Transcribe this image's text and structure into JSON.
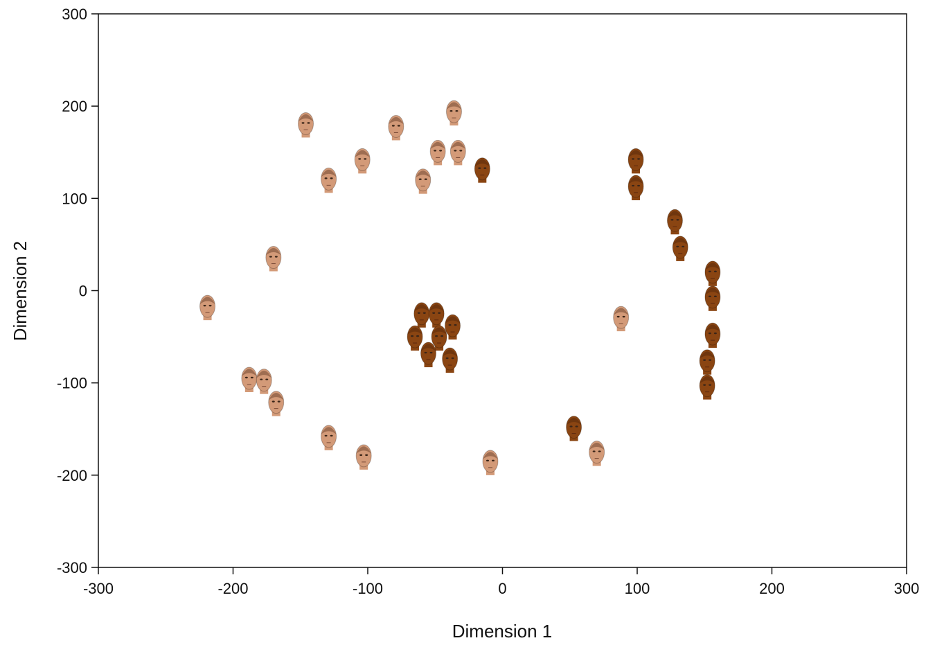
{
  "chart_data": {
    "type": "scatter",
    "x_label": "Dimension 1",
    "y_label": "Dimension 2",
    "xlim": [
      -300,
      300
    ],
    "ylim": [
      -300,
      300
    ],
    "xticks": [
      -300,
      -200,
      -100,
      0,
      100,
      200,
      300
    ],
    "yticks": [
      -300,
      -200,
      -100,
      0,
      100,
      200,
      300
    ],
    "grid": false,
    "series": [
      {
        "color": "#d39a78",
        "x": [
          -146,
          -79,
          -36,
          -104,
          -48,
          -33,
          -129,
          -59,
          -170,
          -219,
          88,
          -188,
          -177,
          -168,
          -129,
          -103,
          -9,
          70
        ],
        "y": [
          181,
          178,
          194,
          142,
          151,
          151,
          121,
          120,
          36,
          -17,
          -29,
          -95,
          -97,
          -121,
          -158,
          -179,
          -185,
          -175
        ]
      },
      {
        "color": "#8a4512",
        "x": [
          -15,
          99,
          99,
          128,
          132,
          156,
          156,
          156,
          152,
          152,
          53,
          -60,
          -49,
          -37,
          -65,
          -47,
          -55,
          -39
        ],
        "y": [
          132,
          142,
          113,
          76,
          47,
          20,
          -7,
          -47,
          -76,
          -103,
          -148,
          -25,
          -25,
          -38,
          -50,
          -50,
          -68,
          -74
        ]
      }
    ]
  }
}
